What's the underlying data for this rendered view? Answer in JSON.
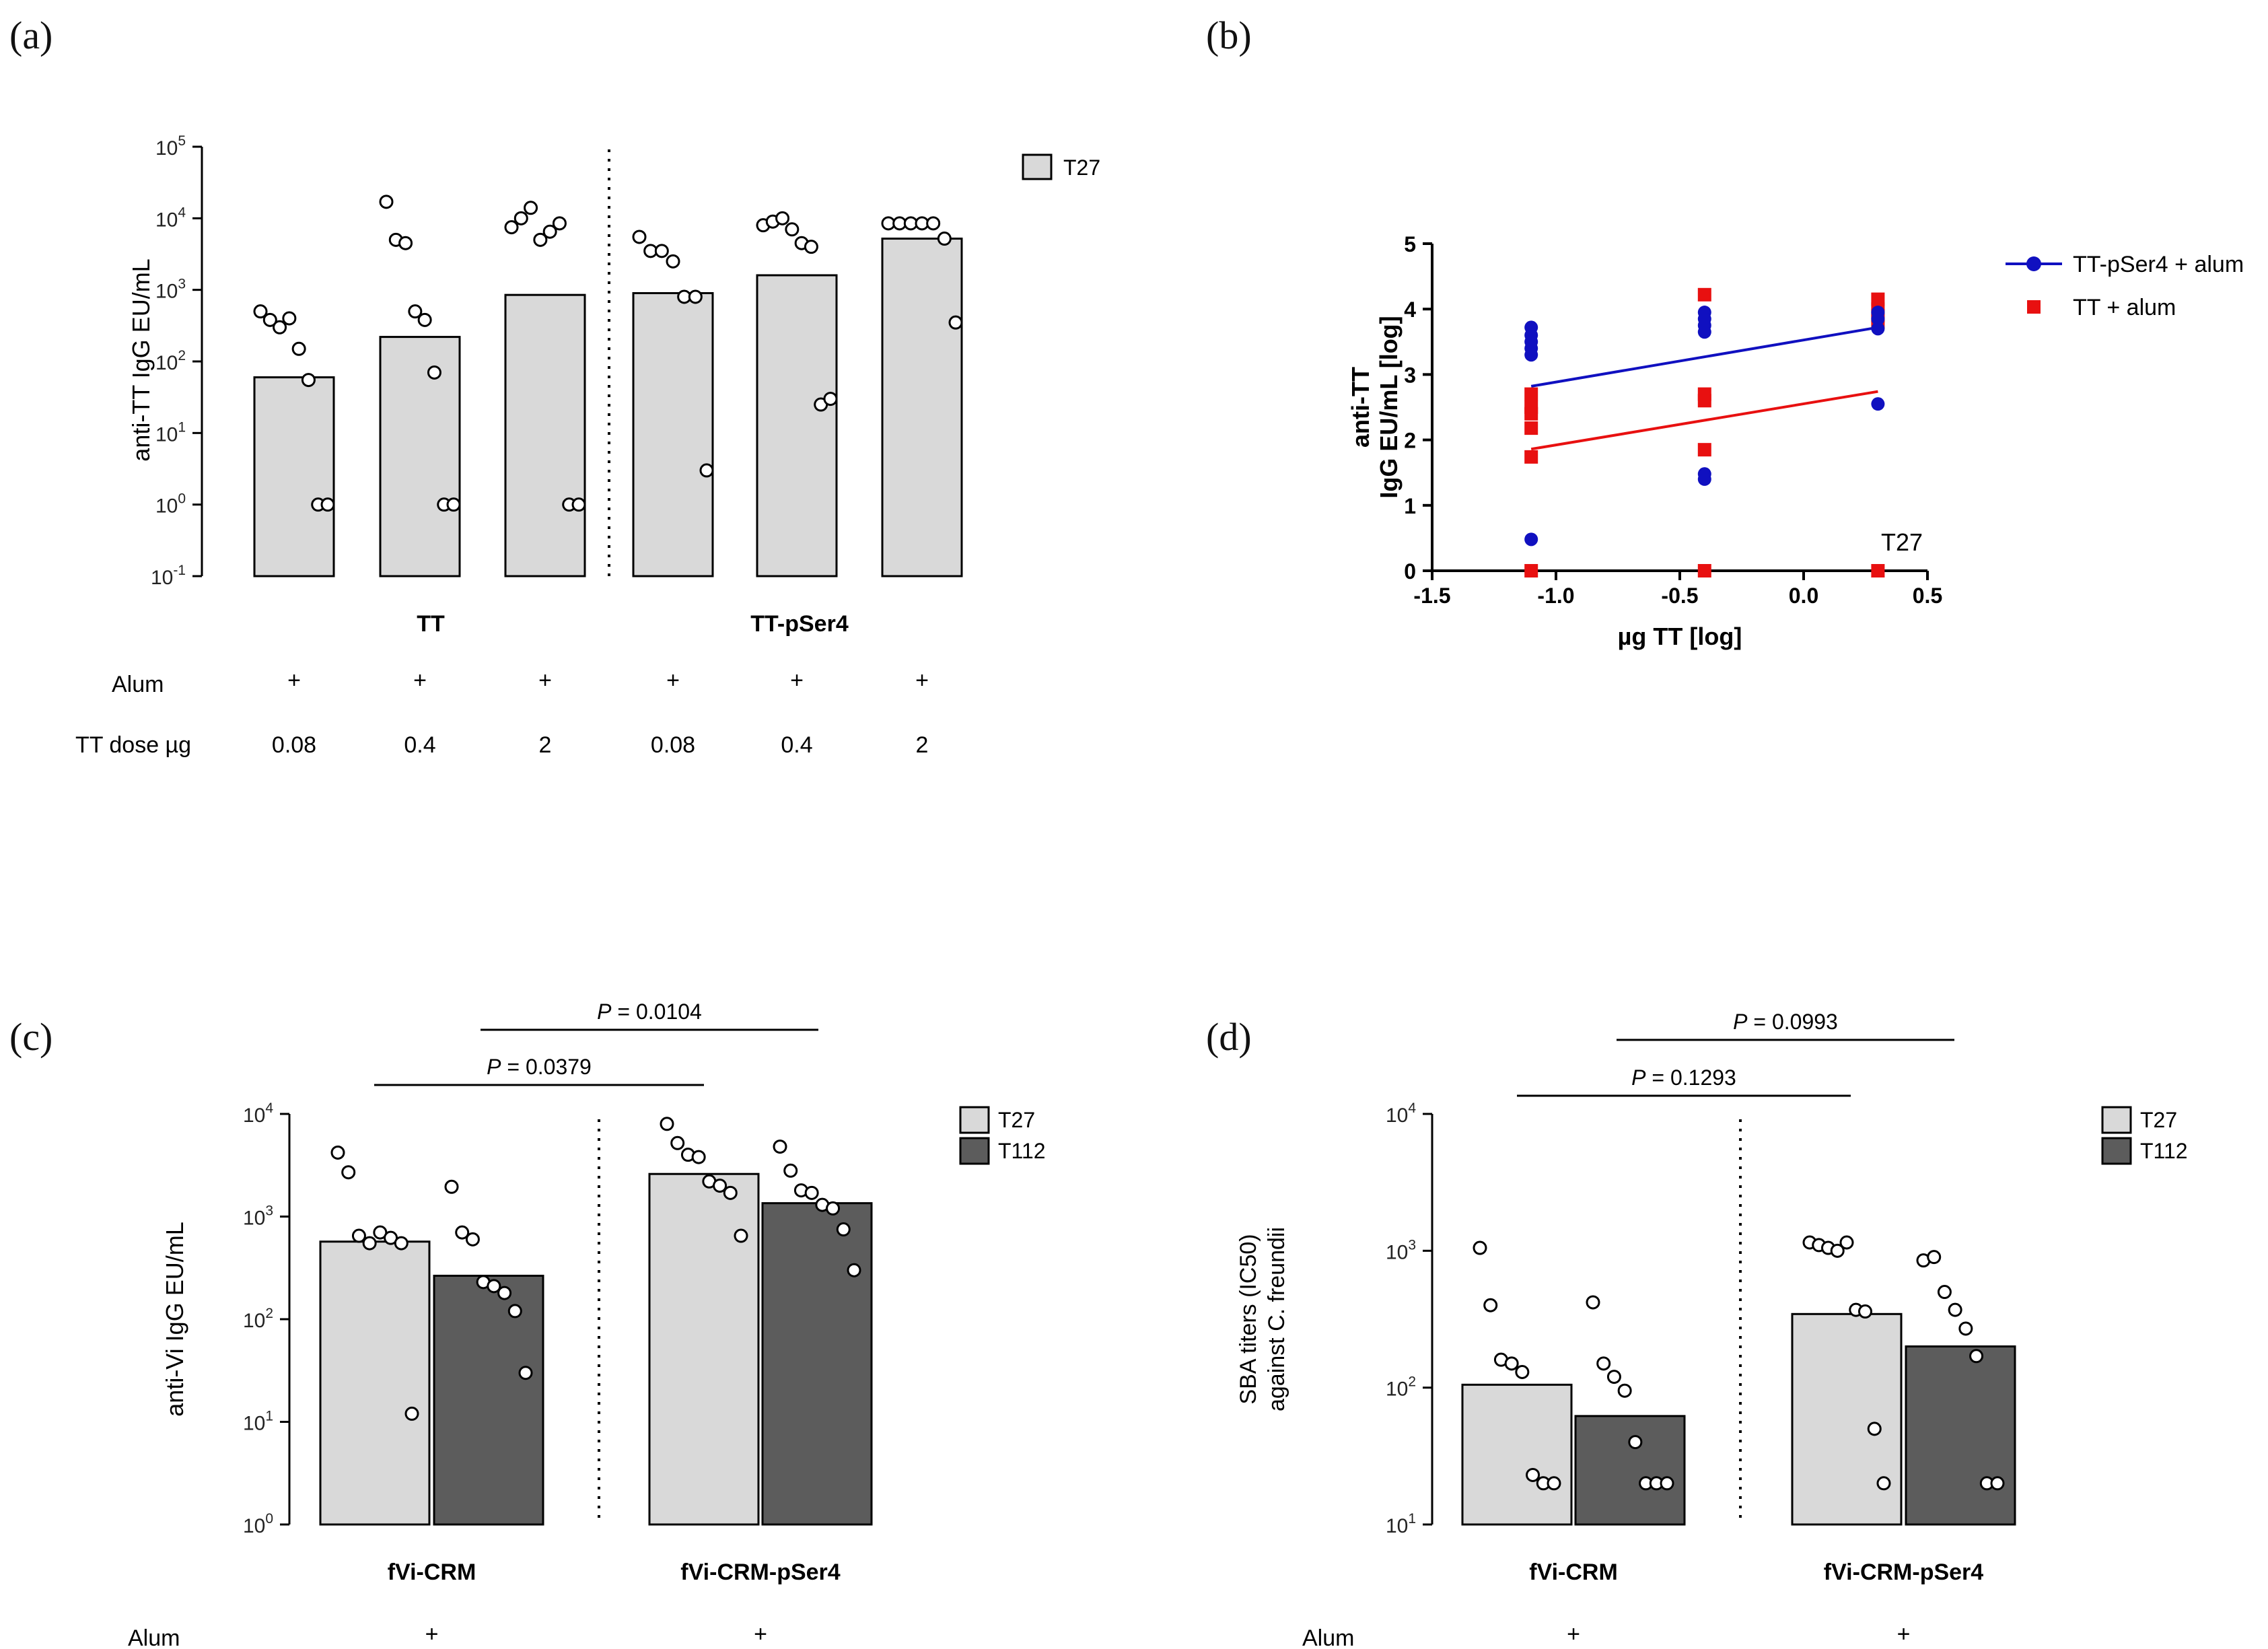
{
  "panel_labels": [
    "(a)",
    "(b)",
    "(c)",
    "(d)"
  ],
  "chart_data": [
    {
      "panel": "(a)",
      "type": "bar",
      "yscale": "log",
      "ylabel": "anti-TT IgG EU/mL",
      "ylim": [
        0.1,
        100000
      ],
      "yticks": [
        {
          "base": "10",
          "exp": "5"
        },
        {
          "base": "10",
          "exp": "4"
        },
        {
          "base": "10",
          "exp": "3"
        },
        {
          "base": "10",
          "exp": "2"
        },
        {
          "base": "10",
          "exp": "1"
        },
        {
          "base": "10",
          "exp": "0"
        },
        {
          "base": "10",
          "exp": "-1"
        }
      ],
      "legend": [
        {
          "name": "T27",
          "color": "#d9d9d9"
        }
      ],
      "group_labels": [
        "TT",
        "TT-pSer4"
      ],
      "row_labels": [
        "Alum",
        "TT dose µg"
      ],
      "alum": [
        "+",
        "+",
        "+",
        "+",
        "+",
        "+"
      ],
      "doses": [
        "0.08",
        "0.4",
        "2",
        "0.08",
        "0.4",
        "2"
      ],
      "bars": [
        {
          "group": "TT",
          "dose": "0.08",
          "value": 60,
          "points": [
            500,
            380,
            300,
            400,
            150,
            55,
            1,
            1
          ]
        },
        {
          "group": "TT",
          "dose": "0.4",
          "value": 220,
          "points": [
            17000,
            5000,
            4500,
            500,
            380,
            70,
            1,
            1
          ]
        },
        {
          "group": "TT",
          "dose": "2",
          "value": 850,
          "points": [
            7500,
            10000,
            14000,
            5000,
            6500,
            8500,
            1,
            1
          ]
        },
        {
          "group": "TT-pSer4",
          "dose": "0.08",
          "value": 900,
          "points": [
            5500,
            3500,
            3500,
            2500,
            800,
            800,
            3
          ]
        },
        {
          "group": "TT-pSer4",
          "dose": "0.4",
          "value": 1600,
          "points": [
            8000,
            9000,
            10000,
            7000,
            4500,
            4000,
            25,
            30
          ]
        },
        {
          "group": "TT-pSer4",
          "dose": "2",
          "value": 5200,
          "points": [
            8500,
            8500,
            8500,
            8500,
            8500,
            5200,
            350
          ]
        }
      ]
    },
    {
      "panel": "(b)",
      "type": "scatter",
      "xlabel": "µg TT [log]",
      "ylabel": [
        "anti-TT",
        "IgG EU/mL [log]"
      ],
      "xlim": [
        -1.5,
        0.5
      ],
      "ylim": [
        0,
        5
      ],
      "xticks": [
        "-1.5",
        "-1.0",
        "-0.5",
        "0.0",
        "0.5"
      ],
      "yticks": [
        "0",
        "1",
        "2",
        "3",
        "4",
        "5"
      ],
      "annotation": "T27",
      "series": [
        {
          "name": "TT-pSer4 + alum",
          "color": "#1010c0",
          "marker": "circle",
          "x": [
            -1.1,
            -1.1,
            -1.1,
            -1.1,
            -1.1,
            -1.1,
            -0.4,
            -0.4,
            -0.4,
            -0.4,
            -0.4,
            -0.4,
            0.3,
            0.3,
            0.3,
            0.3
          ],
          "y": [
            3.72,
            3.6,
            3.5,
            3.4,
            3.3,
            0.48,
            3.95,
            3.85,
            3.75,
            3.65,
            1.48,
            1.4,
            3.95,
            3.85,
            3.7,
            2.55
          ],
          "fit": {
            "x": [
              -1.1,
              0.3
            ],
            "y": [
              2.82,
              3.72
            ]
          }
        },
        {
          "name": "TT + alum",
          "color": "#e81010",
          "marker": "square",
          "x": [
            -1.1,
            -1.1,
            -1.1,
            -1.1,
            -1.1,
            -1.1,
            -0.4,
            -0.4,
            -0.4,
            -0.4,
            -0.4,
            0.3,
            0.3,
            0.3,
            0.3,
            0.3
          ],
          "y": [
            2.7,
            2.5,
            2.4,
            2.18,
            1.74,
            0,
            4.22,
            2.7,
            2.6,
            1.85,
            0,
            4.15,
            4.0,
            3.9,
            3.8,
            0
          ],
          "fit": {
            "x": [
              -1.1,
              0.3
            ],
            "y": [
              1.86,
              2.74
            ]
          }
        }
      ]
    },
    {
      "panel": "(c)",
      "type": "bar",
      "yscale": "log",
      "ylabel": "anti-Vi IgG EU/mL",
      "ylim": [
        1,
        10000
      ],
      "yticks": [
        {
          "base": "10",
          "exp": "4"
        },
        {
          "base": "10",
          "exp": "3"
        },
        {
          "base": "10",
          "exp": "2"
        },
        {
          "base": "10",
          "exp": "1"
        },
        {
          "base": "10",
          "exp": "0"
        }
      ],
      "legend": [
        {
          "name": "T27",
          "color": "#d9d9d9"
        },
        {
          "name": "T112",
          "color": "#5c5c5c"
        }
      ],
      "group_labels": [
        "fVi-CRM",
        "fVi-CRM-pSer4"
      ],
      "row_labels": [
        "Alum"
      ],
      "alum": [
        "+",
        "+"
      ],
      "pvalues": [
        {
          "label": "P",
          "text": " = 0.0104"
        },
        {
          "label": "P",
          "text": " = 0.0379"
        }
      ],
      "bars": [
        {
          "group": "fVi-CRM",
          "series": "T27",
          "value": 570,
          "points": [
            4200,
            2700,
            650,
            550,
            700,
            620,
            550,
            12
          ]
        },
        {
          "group": "fVi-CRM",
          "series": "T112",
          "value": 265,
          "points": [
            1950,
            700,
            600,
            230,
            210,
            180,
            120,
            30
          ]
        },
        {
          "group": "fVi-CRM-pSer4",
          "series": "T27",
          "value": 2600,
          "points": [
            8000,
            5200,
            4000,
            3800,
            2200,
            2000,
            1700,
            650
          ]
        },
        {
          "group": "fVi-CRM-pSer4",
          "series": "T112",
          "value": 1350,
          "points": [
            4800,
            2800,
            1800,
            1700,
            1300,
            1200,
            750,
            300
          ]
        }
      ]
    },
    {
      "panel": "(d)",
      "type": "bar",
      "yscale": "log",
      "ylabel": [
        "SBA titers (IC50)",
        "against C. freundii"
      ],
      "ylim": [
        10,
        10000
      ],
      "yticks": [
        {
          "base": "10",
          "exp": "4"
        },
        {
          "base": "10",
          "exp": "3"
        },
        {
          "base": "10",
          "exp": "2"
        },
        {
          "base": "10",
          "exp": "1"
        }
      ],
      "legend": [
        {
          "name": "T27",
          "color": "#d9d9d9"
        },
        {
          "name": "T112",
          "color": "#5c5c5c"
        }
      ],
      "group_labels": [
        "fVi-CRM",
        "fVi-CRM-pSer4"
      ],
      "row_labels": [
        "Alum"
      ],
      "alum": [
        "+",
        "+"
      ],
      "pvalues": [
        {
          "label": "P",
          "text": " = 0.0993"
        },
        {
          "label": "P",
          "text": " = 0.1293"
        }
      ],
      "bars": [
        {
          "group": "fVi-CRM",
          "series": "T27",
          "value": 105,
          "points": [
            1050,
            400,
            160,
            150,
            130,
            23,
            20,
            20
          ]
        },
        {
          "group": "fVi-CRM",
          "series": "T112",
          "value": 62,
          "points": [
            420,
            150,
            120,
            95,
            40,
            20,
            20,
            20
          ]
        },
        {
          "group": "fVi-CRM-pSer4",
          "series": "T27",
          "value": 345,
          "points": [
            1150,
            1100,
            1050,
            1000,
            1150,
            370,
            360,
            50,
            20
          ]
        },
        {
          "group": "fVi-CRM-pSer4",
          "series": "T112",
          "value": 200,
          "points": [
            850,
            900,
            500,
            370,
            270,
            170,
            20,
            20
          ]
        }
      ]
    }
  ]
}
